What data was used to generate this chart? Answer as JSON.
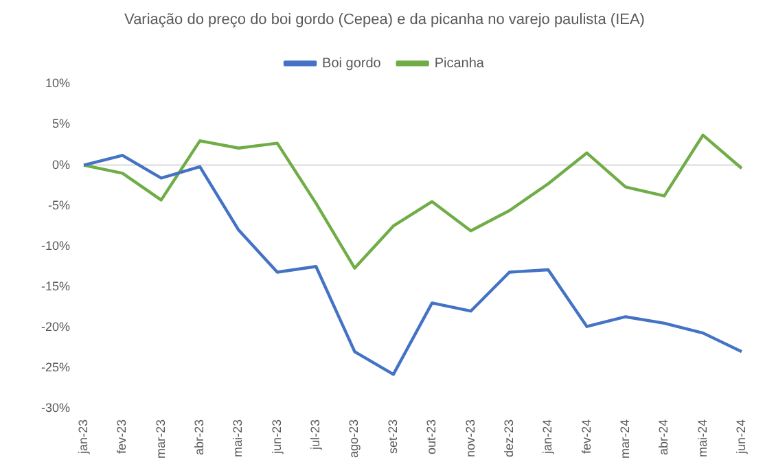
{
  "chart_data": {
    "type": "line",
    "title": "Variação do preço do boi gordo (Cepea) e da picanha no varejo paulista (IEA)",
    "categories": [
      "jan-23",
      "fev-23",
      "mar-23",
      "abr-23",
      "mai-23",
      "jun-23",
      "jul-23",
      "ago-23",
      "set-23",
      "out-23",
      "nov-23",
      "dez-23",
      "jan-24",
      "fev-24",
      "mar-24",
      "abr-24",
      "mai-24",
      "jun-24"
    ],
    "series": [
      {
        "name": "Boi gordo",
        "color": "#4472c4",
        "values": [
          0,
          1.2,
          -1.6,
          -0.2,
          -8,
          -13.2,
          -12.5,
          -23,
          -25.8,
          -17,
          -18,
          -13.2,
          -12.9,
          -19.9,
          -18.7,
          -19.5,
          -20.7,
          -23
        ]
      },
      {
        "name": "Picanha",
        "color": "#70ad47",
        "values": [
          0,
          -1,
          -4.3,
          3,
          2.1,
          2.7,
          -4.7,
          -12.7,
          -7.5,
          -4.5,
          -8.1,
          -5.6,
          -2.3,
          1.5,
          -2.7,
          -3.8,
          3.7,
          -0.4
        ]
      }
    ],
    "ylim": [
      -30,
      10
    ],
    "yticks": [
      {
        "value": -30,
        "label": "-30%"
      },
      {
        "value": -25,
        "label": "-25%"
      },
      {
        "value": -20,
        "label": "-20%"
      },
      {
        "value": -15,
        "label": "-15%"
      },
      {
        "value": -10,
        "label": "-10%"
      },
      {
        "value": -5,
        "label": "-5%"
      },
      {
        "value": 0,
        "label": "0%"
      },
      {
        "value": 5,
        "label": "5%"
      },
      {
        "value": 10,
        "label": "10%"
      }
    ],
    "ref_lines": [
      {
        "axis": "y",
        "value": 0,
        "color": "#d9d9d9"
      }
    ],
    "grid": false,
    "legend": "top",
    "marker": "none",
    "line_style": "solid"
  }
}
